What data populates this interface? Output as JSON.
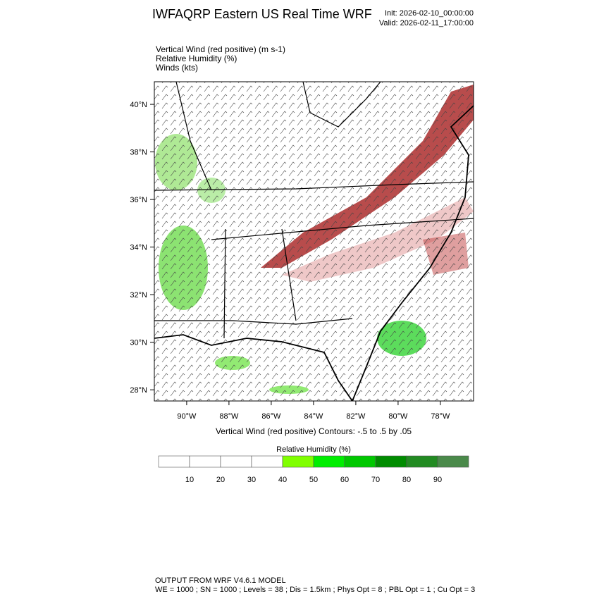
{
  "header": {
    "title": "IWFAQRP Eastern US Real Time WRF",
    "init": "Init: 2026-02-10_00:00:00",
    "valid": "Valid: 2026-02-11_17:00:00"
  },
  "fields": [
    "Vertical Wind (red positive)   (m s-1)",
    "Relative Humidity   (%)",
    "Winds   (kts)"
  ],
  "map": {
    "lat_lim": [
      27.53,
      40.95
    ],
    "lon_lim": [
      -91.53,
      -76.43
    ],
    "lat_ticks": [
      {
        "value": 40,
        "label": "40°N"
      },
      {
        "value": 38,
        "label": "38°N"
      },
      {
        "value": 36,
        "label": "36°N"
      },
      {
        "value": 34,
        "label": "34°N"
      },
      {
        "value": 32,
        "label": "32°N"
      },
      {
        "value": 30,
        "label": "30°N"
      },
      {
        "value": 28,
        "label": "28°N"
      }
    ],
    "lon_ticks": [
      {
        "value": -90,
        "label": "90°W"
      },
      {
        "value": -88,
        "label": "88°W"
      },
      {
        "value": -86,
        "label": "86°W"
      },
      {
        "value": -84,
        "label": "84°W"
      },
      {
        "value": -82,
        "label": "82°W"
      },
      {
        "value": -80,
        "label": "80°W"
      },
      {
        "value": -78,
        "label": "78°W"
      }
    ]
  },
  "contour_note": "Vertical Wind (red positive) Contours: -.5 to .5 by .05",
  "colorbar": {
    "title": "Relative Humidity  (%)",
    "lim": [
      0,
      100
    ],
    "ticks": [
      10,
      20,
      30,
      40,
      50,
      60,
      70,
      80,
      90
    ],
    "colors": [
      "#ffffff",
      "#ffffff",
      "#ffffff",
      "#ffffff",
      "#80ff00",
      "#00ee00",
      "#00c800",
      "#008c00",
      "#228b22",
      "#4a8a4a"
    ]
  },
  "footer": [
    "OUTPUT FROM WRF V4.6.1 MODEL",
    "WE = 1000 ; SN = 1000 ; Levels = 38 ; Dis = 1.5km ; Phys Opt = 8 ; PBL Opt = 1 ; Cu Opt = 3"
  ]
}
